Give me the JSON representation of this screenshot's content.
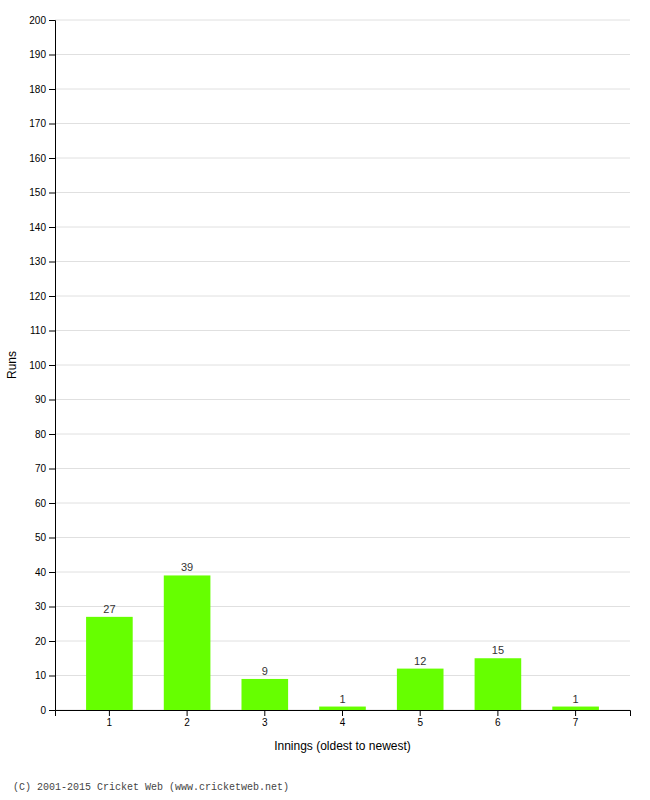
{
  "chart_data": {
    "type": "bar",
    "xlabel": "Innings (oldest to newest)",
    "ylabel": "Runs",
    "categories": [
      "1",
      "2",
      "3",
      "4",
      "5",
      "6",
      "7"
    ],
    "values": [
      27,
      39,
      9,
      1,
      12,
      15,
      1
    ],
    "color": "#66ff00",
    "ylim": [
      0,
      200
    ],
    "yticks": [
      0,
      10,
      20,
      30,
      40,
      50,
      60,
      70,
      80,
      90,
      100,
      110,
      120,
      130,
      140,
      150,
      160,
      170,
      180,
      190,
      200
    ],
    "grid": true,
    "data_labels": true,
    "annotations": [
      "(C) 2001-2015 Cricket Web (www.cricketweb.net)"
    ]
  }
}
